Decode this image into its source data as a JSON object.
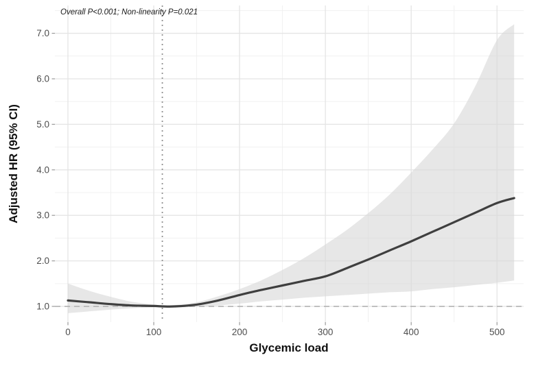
{
  "chart_data": {
    "type": "line",
    "title": "",
    "annotation": "Overall P<0.001; Non-linearity P=0.021",
    "xlabel": "Glycemic load",
    "ylabel": "Adjusted HR (95% CI)",
    "xlim": [
      -15.2,
      531
    ],
    "ylim": [
      0.654,
      7.611
    ],
    "x_ticks": [
      0,
      100,
      200,
      300,
      400,
      500
    ],
    "x_minor_ticks": [
      50,
      150,
      250,
      350,
      450
    ],
    "y_ticks": [
      1.0,
      2.0,
      3.0,
      4.0,
      5.0,
      6.0,
      7.0
    ],
    "y_minor_ticks": [
      1.5,
      2.5,
      3.5,
      4.5,
      5.5,
      6.5,
      7.5
    ],
    "grid": true,
    "legend_position": "none",
    "reference_line": {
      "y": 1.0,
      "style": "dashed"
    },
    "knot_line": {
      "x": 110,
      "style": "dotted"
    },
    "x": [
      0,
      25,
      50,
      75,
      100,
      110,
      125,
      150,
      175,
      200,
      225,
      250,
      275,
      300,
      325,
      350,
      375,
      400,
      425,
      450,
      475,
      500,
      520
    ],
    "series": [
      {
        "name": "Adjusted HR",
        "values": [
          1.13,
          1.09,
          1.05,
          1.02,
          1.01,
          1.0,
          1.0,
          1.04,
          1.13,
          1.25,
          1.36,
          1.46,
          1.56,
          1.66,
          1.84,
          2.03,
          2.23,
          2.43,
          2.64,
          2.85,
          3.06,
          3.27,
          3.38
        ]
      }
    ],
    "ci_band": {
      "name": "95% CI",
      "lower": [
        0.85,
        0.89,
        0.93,
        0.96,
        0.98,
        0.99,
        0.98,
        0.99,
        1.02,
        1.06,
        1.11,
        1.15,
        1.19,
        1.22,
        1.25,
        1.28,
        1.31,
        1.33,
        1.38,
        1.42,
        1.47,
        1.52,
        1.57
      ],
      "upper": [
        1.5,
        1.34,
        1.21,
        1.1,
        1.04,
        1.02,
        1.03,
        1.09,
        1.22,
        1.38,
        1.57,
        1.8,
        2.06,
        2.36,
        2.68,
        3.05,
        3.46,
        3.94,
        4.45,
        5.02,
        5.85,
        6.85,
        7.2
      ]
    },
    "colors": {
      "line": "#3f3f3f",
      "band": "#d9d9d9",
      "grid_major": "#e4e4e4",
      "grid_minor": "#f0f0f0",
      "reference_line": "#b3b3b3",
      "knot_line": "#8f8f8f",
      "tick_mark": "#9a9a9a",
      "tick_label": "#4d4d4d"
    }
  }
}
